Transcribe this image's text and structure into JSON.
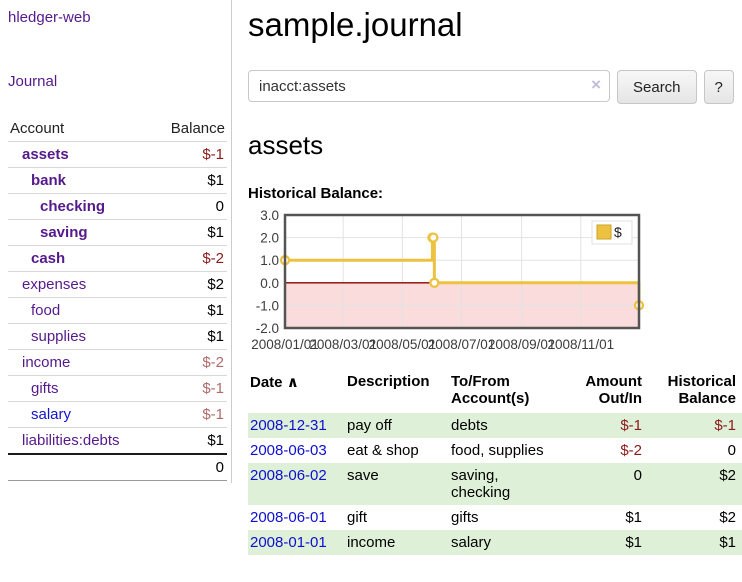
{
  "app": {
    "brand": "hledger-web"
  },
  "sidebar": {
    "nav_journal": "Journal",
    "table": {
      "headers": {
        "account": "Account",
        "balance": "Balance"
      },
      "rows": [
        {
          "account": "assets",
          "depth": 1,
          "bold": true,
          "balance": "$-1"
        },
        {
          "account": "bank",
          "depth": 2,
          "bold": true,
          "balance": "$1"
        },
        {
          "account": "checking",
          "depth": 3,
          "bold": true,
          "balance": "0"
        },
        {
          "account": "saving",
          "depth": 3,
          "bold": true,
          "balance": "$1"
        },
        {
          "account": "cash",
          "depth": 2,
          "bold": true,
          "balance": "$-2"
        },
        {
          "account": "expenses",
          "depth": 1,
          "bold": false,
          "balance": "$2"
        },
        {
          "account": "food",
          "depth": 2,
          "bold": false,
          "balance": "$1"
        },
        {
          "account": "supplies",
          "depth": 2,
          "bold": false,
          "balance": "$1"
        },
        {
          "account": "income",
          "depth": 1,
          "bold": false,
          "balance": "$-2"
        },
        {
          "account": "gifts",
          "depth": 2,
          "bold": false,
          "balance": "$-1"
        },
        {
          "account": "salary",
          "depth": 2,
          "bold": false,
          "balance": "$-1",
          "link_color": "blue"
        },
        {
          "account": "liabilities:debts",
          "depth": 1,
          "bold": false,
          "balance": "$1"
        }
      ],
      "total": "0"
    }
  },
  "main": {
    "title": "sample.journal",
    "search": {
      "value": "inacct:assets",
      "clear_icon": "×",
      "button": "Search",
      "help_button": "?"
    },
    "account_heading": "assets"
  },
  "chart_data": {
    "type": "line",
    "title": "Historical Balance:",
    "step": true,
    "series": [
      {
        "name": "$",
        "color": "#edc240",
        "points": [
          {
            "x": "2008-01-01",
            "y": 1
          },
          {
            "x": "2008-06-01",
            "y": 2
          },
          {
            "x": "2008-06-02",
            "y": 2
          },
          {
            "x": "2008-06-03",
            "y": 0
          },
          {
            "x": "2008-12-31",
            "y": -1
          }
        ]
      }
    ],
    "ylim": [
      -2,
      3
    ],
    "yticks": [
      3.0,
      2.0,
      1.0,
      0.0,
      -1.0,
      -2.0
    ],
    "xrange": [
      "2008-01-01",
      "2008-12-31"
    ],
    "xticks": [
      "2008/01/01",
      "2008/03/01",
      "2008/05/01",
      "2008/07/01",
      "2008/09/01",
      "2008/11/01"
    ],
    "grid": true,
    "legend_position": "top-right",
    "zero_line_color": "#8b0000",
    "negative_region_color": "#fadcdc",
    "border_color": "#545454",
    "grid_color": "#e3e3e3",
    "tick_label_color": "#3c3c3c"
  },
  "register": {
    "headers": {
      "date": "Date",
      "sort_icon": "∧",
      "description": "Description",
      "tofrom": "To/From Account(s)",
      "amount": "Amount Out/In",
      "balance": "Historical Balance"
    },
    "rows": [
      {
        "date": "2008-12-31",
        "description": "pay off",
        "accounts": "debts",
        "amount": "$-1",
        "balance": "$-1"
      },
      {
        "date": "2008-06-03",
        "description": "eat & shop",
        "accounts": "food, supplies",
        "amount": "$-2",
        "balance": "0"
      },
      {
        "date": "2008-06-02",
        "description": "save",
        "accounts": "saving, checking",
        "amount": "0",
        "balance": "$2"
      },
      {
        "date": "2008-06-01",
        "description": "gift",
        "accounts": "gifts",
        "amount": "$1",
        "balance": "$2"
      },
      {
        "date": "2008-01-01",
        "description": "income",
        "accounts": "salary",
        "amount": "$1",
        "balance": "$1"
      }
    ]
  },
  "colors": {
    "link_purple": "#551a8b",
    "link_blue": "#1414cc",
    "negative_strong": "#8b1a1a",
    "negative_soft": "#b06a6a",
    "row_stripe_green": "#dff0d8",
    "series_gold": "#edc240"
  }
}
